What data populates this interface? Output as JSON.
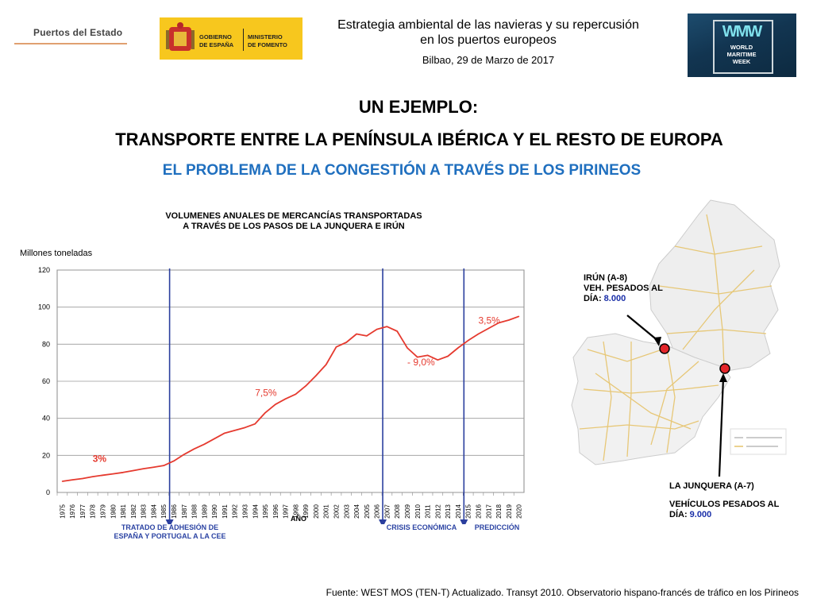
{
  "header": {
    "logo_puertos": "Puertos del Estado",
    "logo_gobierno": [
      "GOBIERNO",
      "DE ESPAÑA"
    ],
    "logo_ministerio": [
      "MINISTERIO",
      "DE FOMENTO"
    ],
    "title_line1": "Estrategia ambiental de las navieras y su repercusión",
    "title_line2": "en los puertos europeos",
    "date": "Bilbao, 29 de Marzo de 2017",
    "logo_wmw": [
      "WORLD",
      "MARITIME",
      "WEEK"
    ],
    "wmw_mark": "WMW"
  },
  "titles": {
    "example": "UN EJEMPLO:",
    "transport": "TRANSPORTE ENTRE LA PENÍNSULA IBÉRICA Y EL RESTO DE EUROPA",
    "problem": "EL PROBLEMA DE LA CONGESTIÓN A TRAVÉS DE LOS PIRINEOS"
  },
  "chart_data": {
    "type": "line",
    "title_line1": "VOLUMENES ANUALES DE MERCANCÍAS TRANSPORTADAS",
    "title_line2": "A TRAVÉS DE LOS PASOS DE LA JUNQUERA E IRÚN",
    "ylabel": "Millones toneladas",
    "xlabel": "AÑO",
    "ylim": [
      0,
      120
    ],
    "yticks": [
      0,
      20,
      40,
      60,
      80,
      100,
      120
    ],
    "grid": true,
    "line_color": "#e53a2f",
    "categories": [
      "1975",
      "1976",
      "1977",
      "1978",
      "1979",
      "1980",
      "1981",
      "1982",
      "1983",
      "1984",
      "1985",
      "1986",
      "1987",
      "1988",
      "1989",
      "1990",
      "1991",
      "1992",
      "1993",
      "1994",
      "1995",
      "1996",
      "1997",
      "1998",
      "1999",
      "2000",
      "2001",
      "2002",
      "2003",
      "2004",
      "2005",
      "2006",
      "2007",
      "2008",
      "2009",
      "2010",
      "2011",
      "2012",
      "2013",
      "2014",
      "2015",
      "2016",
      "2017",
      "2018",
      "2019",
      "2020"
    ],
    "values": [
      6,
      6.8,
      7.5,
      8.5,
      9.3,
      10,
      10.8,
      11.8,
      12.8,
      13.6,
      14.5,
      17,
      20.5,
      23.5,
      26,
      29,
      32,
      33.5,
      35,
      37,
      43,
      47.5,
      50.5,
      53,
      57.5,
      63,
      69,
      78.5,
      81,
      85.5,
      84.5,
      88,
      89.5,
      87,
      78,
      73,
      74,
      71.5,
      73.5,
      78,
      82,
      85.5,
      88.5,
      91.5,
      93,
      95
    ],
    "annotations": [
      {
        "text": "3%",
        "year": "1978",
        "y": 16.5,
        "style": "bold"
      },
      {
        "text": "7,5%",
        "year": "1994",
        "y": 52
      },
      {
        "text": "- 9,0%",
        "year": "2009",
        "y": 68.5
      },
      {
        "text": "3,5%",
        "year": "2016",
        "y": 91
      }
    ],
    "events": [
      {
        "year": "1986",
        "label": "TRATADO DE ADHESIÓN DE ESPAÑA Y PORTUGAL A LA CEE"
      },
      {
        "year": "2007",
        "label": "CRISIS ECONÓMICA"
      },
      {
        "year": "2015",
        "label": "PREDICCIÓN"
      }
    ]
  },
  "notes": {
    "cee": "TRATADO DE ADHESIÓN DE ESPAÑA Y PORTUGAL A LA CEE",
    "crisis": "CRISIS ECONÓMICA",
    "prediction": "PREDICCIÓN"
  },
  "map": {
    "irun_line1": "IRÚN (A-8)",
    "irun_line2": "VEH. PESADOS AL",
    "irun_prefix": "DÍA: ",
    "irun_value": "8.000",
    "junq_line1": "LA JUNQUERA (A-7)",
    "junq_line2": "VEHÍCULOS PESADOS AL",
    "junq_prefix": "DÍA: ",
    "junq_value": "9.000",
    "marker_color": "#e3262a"
  },
  "source": "Fuente: WEST MOS (TEN-T) Actualizado. Transyt 2010. Observatorio hispano-francés de tráfico en los Pirineos"
}
